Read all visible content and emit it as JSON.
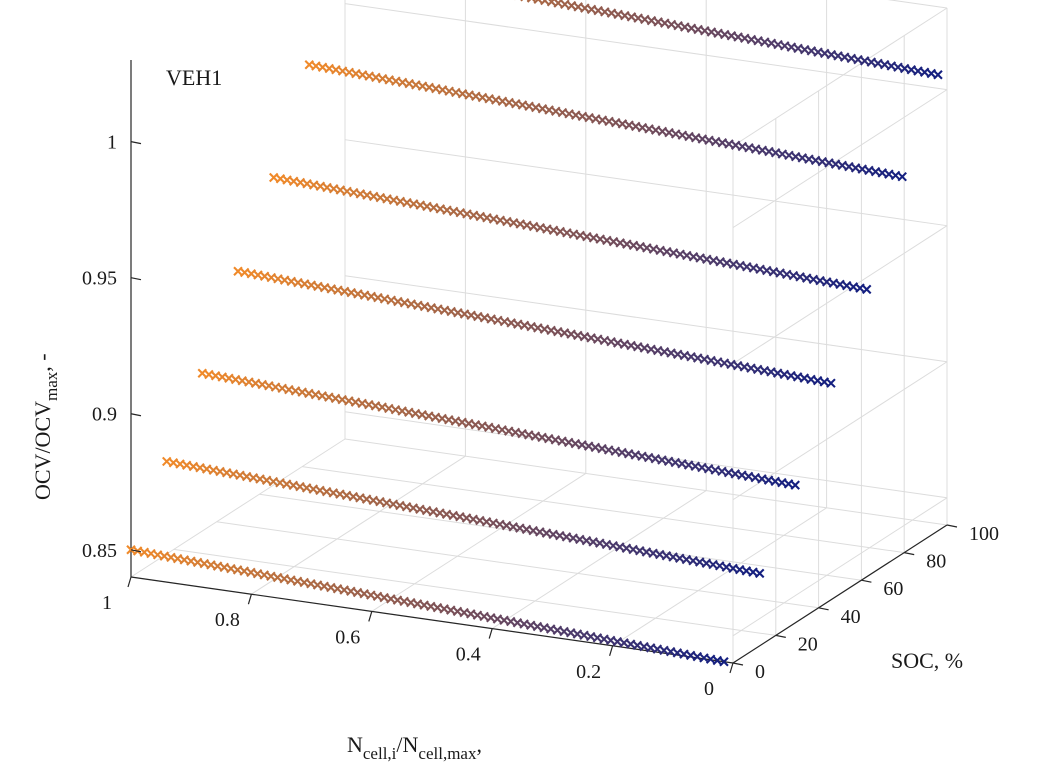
{
  "chart_data": {
    "type": "scatter",
    "projection": "3d",
    "title": "",
    "annotation": "VEH1",
    "xlabel_main": "N",
    "xlabel_sub1": "cell,i",
    "xlabel_mid": "/N",
    "xlabel_sub2": "cell,max",
    "xlabel_tail": ",",
    "ylabel": "SOC, %",
    "zlabel_main": "OCV/OCV",
    "zlabel_sub": "max",
    "zlabel_tail": ", -",
    "xlim": [
      0,
      1
    ],
    "ylim": [
      0,
      100
    ],
    "zlim": [
      0.84,
      1.03
    ],
    "xticks": [
      "0",
      "0.2",
      "0.4",
      "0.6",
      "0.8",
      "1"
    ],
    "yticks": [
      "0",
      "20",
      "40",
      "60",
      "80",
      "100"
    ],
    "zticks": [
      "0.85",
      "0.9",
      "0.95",
      "1"
    ],
    "marker": "x",
    "grid": true,
    "color_start": "#f08a2a",
    "color_end": "#141f80",
    "series": [
      {
        "soc": 0,
        "ocv": [
          0.84,
          0.85
        ]
      },
      {
        "soc": 16.7,
        "ocv": [
          0.864,
          0.874
        ]
      },
      {
        "soc": 33.3,
        "ocv": [
          0.888,
          0.898
        ]
      },
      {
        "soc": 50,
        "ocv": [
          0.917,
          0.927
        ]
      },
      {
        "soc": 66.7,
        "ocv": [
          0.943,
          0.953
        ]
      },
      {
        "soc": 83.3,
        "ocv": [
          0.976,
          0.986
        ]
      },
      {
        "soc": 100,
        "ocv": [
          1.005,
          1.015
        ]
      }
    ]
  }
}
